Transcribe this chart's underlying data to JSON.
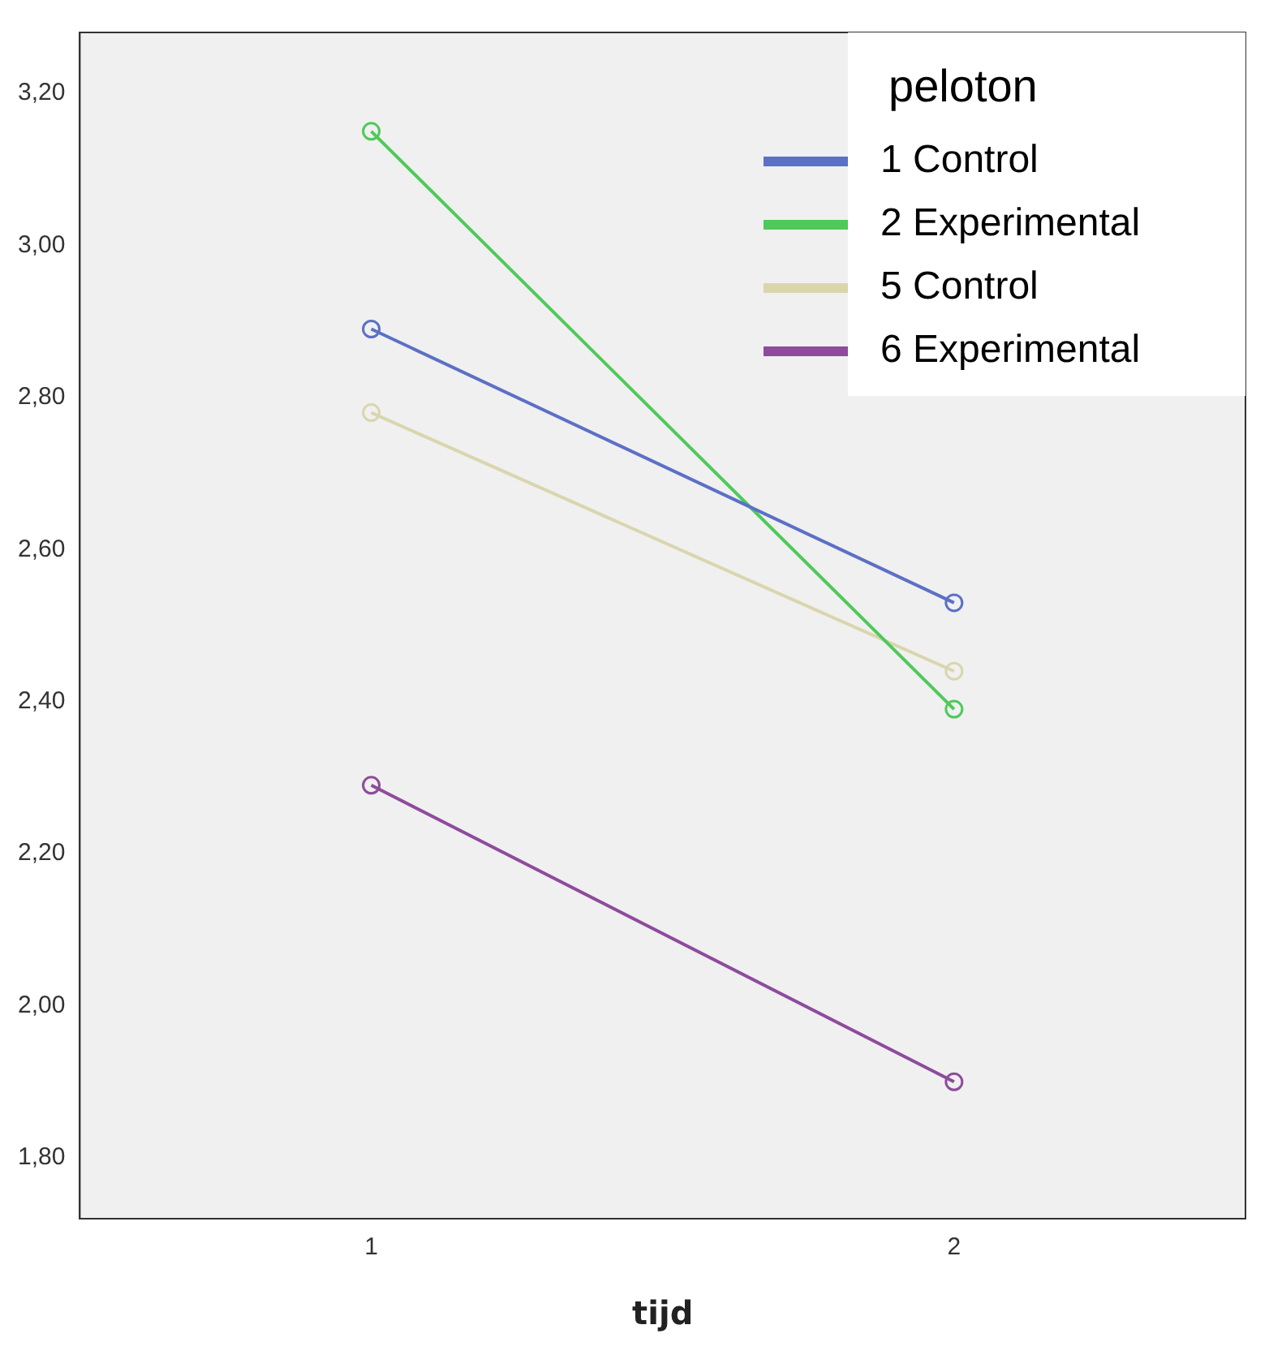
{
  "chart_data": {
    "type": "line",
    "categories": [
      "1",
      "2"
    ],
    "xlabel": "tijd",
    "legend_title": "peloton",
    "legend": "top right",
    "marker": "circle",
    "grid": false,
    "ylim": [
      1.72,
      3.28
    ],
    "yticks": [
      {
        "value": 1.8,
        "label": "1,80"
      },
      {
        "value": 2.0,
        "label": "2,00"
      },
      {
        "value": 2.2,
        "label": "2,20"
      },
      {
        "value": 2.4,
        "label": "2,40"
      },
      {
        "value": 2.6,
        "label": "2,60"
      },
      {
        "value": 2.8,
        "label": "2,80"
      },
      {
        "value": 3.0,
        "label": "3,00"
      },
      {
        "value": 3.2,
        "label": "3,20"
      }
    ],
    "series": [
      {
        "name": "1 Control",
        "color": "#5b70c6",
        "values": [
          2.89,
          2.53
        ]
      },
      {
        "name": "2 Experimental",
        "color": "#4fc95a",
        "values": [
          3.15,
          2.39
        ]
      },
      {
        "name": "5 Control",
        "color": "#d9d6ae",
        "values": [
          2.78,
          2.44
        ]
      },
      {
        "name": "6 Experimental",
        "color": "#8e4b9c",
        "values": [
          2.29,
          1.9
        ]
      }
    ]
  }
}
